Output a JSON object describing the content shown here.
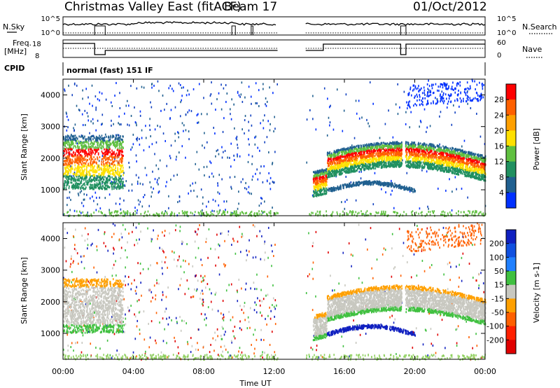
{
  "header": {
    "radar_title": "Christmas Valley East (fitACF)",
    "beam_label": "Beam 17",
    "date": "01/Oct/2012"
  },
  "strips": {
    "nsky_label": "N.Sky",
    "nsearch_label": "N.Search",
    "freq_label_line1": "Freq.",
    "freq_label_line2": "[MHz]",
    "nave_label": "Nave",
    "cpid_label": "CPID",
    "cpid_value": "normal (fast) 151 IF",
    "noise_left_ticks": [
      "10^5",
      "10^0"
    ],
    "noise_right_ticks": [
      "10^5",
      "10^0"
    ],
    "freq_left_ticks": [
      "18",
      "8"
    ],
    "nave_right_ticks": [
      "60",
      "0"
    ]
  },
  "axes": {
    "ylabel": "Slant Range [km]",
    "xlabel": "Time UT",
    "time_ticks": [
      "00:00",
      "04:00",
      "08:00",
      "12:00",
      "16:00",
      "20:00",
      "00:00"
    ],
    "range_ticks": [
      "1000",
      "2000",
      "3000",
      "4000"
    ]
  },
  "chart_data": [
    {
      "type": "heatmap",
      "panel": "power",
      "x_range_hours": [
        0,
        24
      ],
      "ylim_km": [
        180,
        4500
      ],
      "gap_hours": [
        12.2,
        13.8
      ],
      "colorbar_title": "Power [dB]",
      "colorbar_ticks": [
        "28",
        "24",
        "20",
        "16",
        "12",
        "8",
        "4"
      ],
      "colorbar_colors": [
        "#ff0000",
        "#ff6000",
        "#ffa000",
        "#ffe000",
        "#60c040",
        "#209060",
        "#206090",
        "#0030ff"
      ]
    },
    {
      "type": "heatmap",
      "panel": "velocity",
      "x_range_hours": [
        0,
        24
      ],
      "ylim_km": [
        180,
        4500
      ],
      "gap_hours": [
        12.2,
        13.8
      ],
      "colorbar_title": "Velocity [m s-1]",
      "colorbar_ticks": [
        "200",
        "100",
        "50",
        "15",
        "-15",
        "-50",
        "-100",
        "-200"
      ],
      "colorbar_colors": [
        "#1020c0",
        "#1050e0",
        "#2080ff",
        "#40c040",
        "#c8c8c0",
        "#ffa000",
        "#ff6000",
        "#ff2000",
        "#e00000"
      ]
    }
  ]
}
